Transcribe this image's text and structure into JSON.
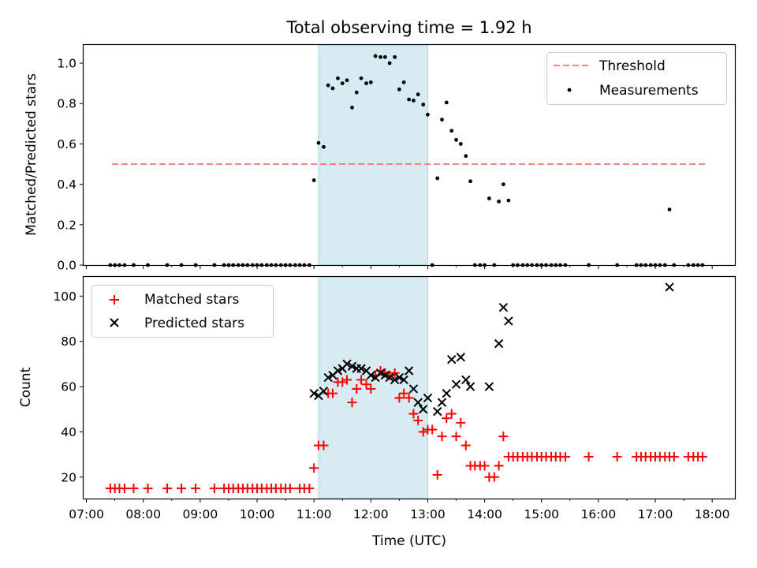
{
  "chart_data": [
    {
      "type": "scatter",
      "title": "Total observing time = 1.92 h",
      "xlabel": "",
      "ylabel": "Matched/Predicted stars",
      "ylim": [
        0,
        1.09
      ],
      "yticks": [
        0.0,
        0.2,
        0.4,
        0.6,
        0.8,
        1.0
      ],
      "ytick_labels": [
        "0.0",
        "0.2",
        "0.4",
        "0.6",
        "0.8",
        "1.0"
      ],
      "xlim_hours": [
        6.95,
        18.4
      ],
      "shaded_interval_hours": [
        11.08,
        13.0
      ],
      "shaded_color": "#add8e6",
      "legend_position": "upper right",
      "threshold": {
        "name": "Threshold",
        "y": 0.5,
        "x_range_hours": [
          7.45,
          17.9
        ],
        "color": "#ff7f7f"
      },
      "series": [
        {
          "name": "Measurements",
          "color": "#000000",
          "points": [
            [
              7.42,
              0
            ],
            [
              7.5,
              0
            ],
            [
              7.58,
              0
            ],
            [
              7.67,
              0
            ],
            [
              7.83,
              0
            ],
            [
              8.08,
              0
            ],
            [
              8.42,
              0
            ],
            [
              8.67,
              0
            ],
            [
              8.92,
              0
            ],
            [
              9.25,
              0
            ],
            [
              9.42,
              0
            ],
            [
              9.5,
              0
            ],
            [
              9.58,
              0
            ],
            [
              9.67,
              0
            ],
            [
              9.75,
              0
            ],
            [
              9.83,
              0
            ],
            [
              9.92,
              0
            ],
            [
              10.0,
              0
            ],
            [
              10.08,
              0
            ],
            [
              10.17,
              0
            ],
            [
              10.25,
              0
            ],
            [
              10.33,
              0
            ],
            [
              10.42,
              0
            ],
            [
              10.5,
              0
            ],
            [
              10.58,
              0
            ],
            [
              10.67,
              0
            ],
            [
              10.75,
              0
            ],
            [
              10.83,
              0
            ],
            [
              10.92,
              0
            ],
            [
              11.0,
              0.42
            ],
            [
              11.08,
              0.605
            ],
            [
              11.17,
              0.585
            ],
            [
              11.25,
              0.89
            ],
            [
              11.33,
              0.875
            ],
            [
              11.42,
              0.925
            ],
            [
              11.5,
              0.9
            ],
            [
              11.58,
              0.915
            ],
            [
              11.67,
              0.78
            ],
            [
              11.75,
              0.855
            ],
            [
              11.83,
              0.925
            ],
            [
              11.92,
              0.9
            ],
            [
              12.0,
              0.905
            ],
            [
              12.08,
              1.035
            ],
            [
              12.17,
              1.03
            ],
            [
              12.25,
              1.03
            ],
            [
              12.33,
              1.0
            ],
            [
              12.42,
              1.03
            ],
            [
              12.5,
              0.87
            ],
            [
              12.58,
              0.905
            ],
            [
              12.67,
              0.82
            ],
            [
              12.75,
              0.815
            ],
            [
              12.83,
              0.845
            ],
            [
              12.92,
              0.795
            ],
            [
              13.0,
              0.745
            ],
            [
              13.17,
              0.43
            ],
            [
              13.25,
              0.72
            ],
            [
              13.33,
              0.805
            ],
            [
              13.42,
              0.665
            ],
            [
              13.5,
              0.62
            ],
            [
              13.58,
              0.6
            ],
            [
              13.67,
              0.54
            ],
            [
              13.75,
              0.415
            ],
            [
              14.08,
              0.33
            ],
            [
              14.25,
              0.315
            ],
            [
              14.33,
              0.4
            ],
            [
              14.42,
              0.32
            ],
            [
              17.25,
              0.275
            ],
            [
              13.08,
              0
            ],
            [
              13.83,
              0
            ],
            [
              13.92,
              0
            ],
            [
              14.0,
              0
            ],
            [
              14.17,
              0
            ],
            [
              14.5,
              0
            ],
            [
              14.58,
              0
            ],
            [
              14.67,
              0
            ],
            [
              14.75,
              0
            ],
            [
              14.83,
              0
            ],
            [
              14.92,
              0
            ],
            [
              15.0,
              0
            ],
            [
              15.08,
              0
            ],
            [
              15.17,
              0
            ],
            [
              15.25,
              0
            ],
            [
              15.33,
              0
            ],
            [
              15.42,
              0
            ],
            [
              15.83,
              0
            ],
            [
              16.33,
              0
            ],
            [
              16.67,
              0
            ],
            [
              16.75,
              0
            ],
            [
              16.83,
              0
            ],
            [
              16.92,
              0
            ],
            [
              17.0,
              0
            ],
            [
              17.08,
              0
            ],
            [
              17.17,
              0
            ],
            [
              17.33,
              0
            ],
            [
              17.58,
              0
            ],
            [
              17.67,
              0
            ],
            [
              17.75,
              0
            ],
            [
              17.83,
              0
            ]
          ]
        }
      ],
      "legend": [
        "Threshold",
        "Measurements"
      ]
    },
    {
      "type": "scatter",
      "title": "",
      "xlabel": "Time (UTC)",
      "ylabel": "Count",
      "ylim": [
        10.5,
        108.5
      ],
      "yticks": [
        20,
        40,
        60,
        80,
        100
      ],
      "ytick_labels": [
        "20",
        "40",
        "60",
        "80",
        "100"
      ],
      "xlim_hours": [
        6.95,
        18.4
      ],
      "xticks_hours": [
        7,
        8,
        9,
        10,
        11,
        12,
        13,
        14,
        15,
        16,
        17,
        18
      ],
      "xtick_labels": [
        "07:00",
        "08:00",
        "09:00",
        "10:00",
        "11:00",
        "12:00",
        "13:00",
        "14:00",
        "15:00",
        "16:00",
        "17:00",
        "18:00"
      ],
      "shaded_interval_hours": [
        11.08,
        13.0
      ],
      "shaded_color": "#add8e6",
      "legend_position": "upper left",
      "series": [
        {
          "name": "Matched stars",
          "marker": "plus",
          "color": "#ff0000",
          "points": [
            [
              7.42,
              15
            ],
            [
              7.5,
              15
            ],
            [
              7.58,
              15
            ],
            [
              7.67,
              15
            ],
            [
              7.83,
              15
            ],
            [
              8.08,
              15
            ],
            [
              8.42,
              15
            ],
            [
              8.67,
              15
            ],
            [
              8.92,
              15
            ],
            [
              9.25,
              15
            ],
            [
              9.42,
              15
            ],
            [
              9.5,
              15
            ],
            [
              9.58,
              15
            ],
            [
              9.67,
              15
            ],
            [
              9.75,
              15
            ],
            [
              9.83,
              15
            ],
            [
              9.92,
              15
            ],
            [
              10.0,
              15
            ],
            [
              10.08,
              15
            ],
            [
              10.17,
              15
            ],
            [
              10.25,
              15
            ],
            [
              10.33,
              15
            ],
            [
              10.42,
              15
            ],
            [
              10.5,
              15
            ],
            [
              10.58,
              15
            ],
            [
              10.75,
              15
            ],
            [
              10.83,
              15
            ],
            [
              10.92,
              15
            ],
            [
              11.0,
              24
            ],
            [
              11.08,
              34
            ],
            [
              11.17,
              34
            ],
            [
              11.25,
              57
            ],
            [
              11.33,
              57
            ],
            [
              11.42,
              62
            ],
            [
              11.5,
              62
            ],
            [
              11.58,
              63
            ],
            [
              11.67,
              53
            ],
            [
              11.75,
              59
            ],
            [
              11.83,
              63
            ],
            [
              11.92,
              61
            ],
            [
              12.0,
              59
            ],
            [
              12.08,
              65
            ],
            [
              12.17,
              67
            ],
            [
              12.25,
              66
            ],
            [
              12.33,
              65
            ],
            [
              12.42,
              66
            ],
            [
              12.5,
              55
            ],
            [
              12.58,
              57
            ],
            [
              12.67,
              55
            ],
            [
              12.75,
              48
            ],
            [
              12.83,
              45
            ],
            [
              12.92,
              40
            ],
            [
              13.0,
              41
            ],
            [
              13.08,
              41
            ],
            [
              13.17,
              21
            ],
            [
              13.25,
              38
            ],
            [
              13.33,
              46
            ],
            [
              13.42,
              48
            ],
            [
              13.5,
              38
            ],
            [
              13.58,
              44
            ],
            [
              13.67,
              34
            ],
            [
              13.75,
              25
            ],
            [
              13.83,
              25
            ],
            [
              13.92,
              25
            ],
            [
              14.0,
              25
            ],
            [
              14.08,
              20
            ],
            [
              14.17,
              20
            ],
            [
              14.25,
              25
            ],
            [
              14.33,
              38
            ],
            [
              14.42,
              29
            ],
            [
              14.5,
              29
            ],
            [
              14.58,
              29
            ],
            [
              14.67,
              29
            ],
            [
              14.75,
              29
            ],
            [
              14.83,
              29
            ],
            [
              14.92,
              29
            ],
            [
              15.0,
              29
            ],
            [
              15.08,
              29
            ],
            [
              15.17,
              29
            ],
            [
              15.25,
              29
            ],
            [
              15.33,
              29
            ],
            [
              15.42,
              29
            ],
            [
              15.83,
              29
            ],
            [
              16.33,
              29
            ],
            [
              16.67,
              29
            ],
            [
              16.75,
              29
            ],
            [
              16.83,
              29
            ],
            [
              16.92,
              29
            ],
            [
              17.0,
              29
            ],
            [
              17.08,
              29
            ],
            [
              17.17,
              29
            ],
            [
              17.25,
              29
            ],
            [
              17.33,
              29
            ],
            [
              17.58,
              29
            ],
            [
              17.67,
              29
            ],
            [
              17.75,
              29
            ],
            [
              17.83,
              29
            ]
          ]
        },
        {
          "name": "Predicted stars",
          "marker": "x",
          "color": "#000000",
          "points": [
            [
              11.0,
              57
            ],
            [
              11.08,
              56
            ],
            [
              11.17,
              58
            ],
            [
              11.25,
              64
            ],
            [
              11.33,
              65
            ],
            [
              11.42,
              67
            ],
            [
              11.5,
              68
            ],
            [
              11.58,
              70
            ],
            [
              11.67,
              69
            ],
            [
              11.75,
              68
            ],
            [
              11.83,
              68
            ],
            [
              11.92,
              67
            ],
            [
              12.0,
              65
            ],
            [
              12.08,
              64
            ],
            [
              12.17,
              66
            ],
            [
              12.25,
              65
            ],
            [
              12.33,
              64
            ],
            [
              12.42,
              63
            ],
            [
              12.5,
              64
            ],
            [
              12.58,
              63
            ],
            [
              12.67,
              67
            ],
            [
              12.75,
              59
            ],
            [
              12.83,
              53
            ],
            [
              12.92,
              50
            ],
            [
              13.0,
              55
            ],
            [
              13.17,
              49
            ],
            [
              13.25,
              53
            ],
            [
              13.33,
              57
            ],
            [
              13.42,
              72
            ],
            [
              13.5,
              61
            ],
            [
              13.58,
              73
            ],
            [
              13.67,
              63
            ],
            [
              13.75,
              60
            ],
            [
              14.08,
              60
            ],
            [
              14.25,
              79
            ],
            [
              14.33,
              95
            ],
            [
              14.42,
              89
            ],
            [
              17.25,
              104
            ]
          ]
        }
      ],
      "legend": [
        "Matched stars",
        "Predicted stars"
      ]
    }
  ]
}
